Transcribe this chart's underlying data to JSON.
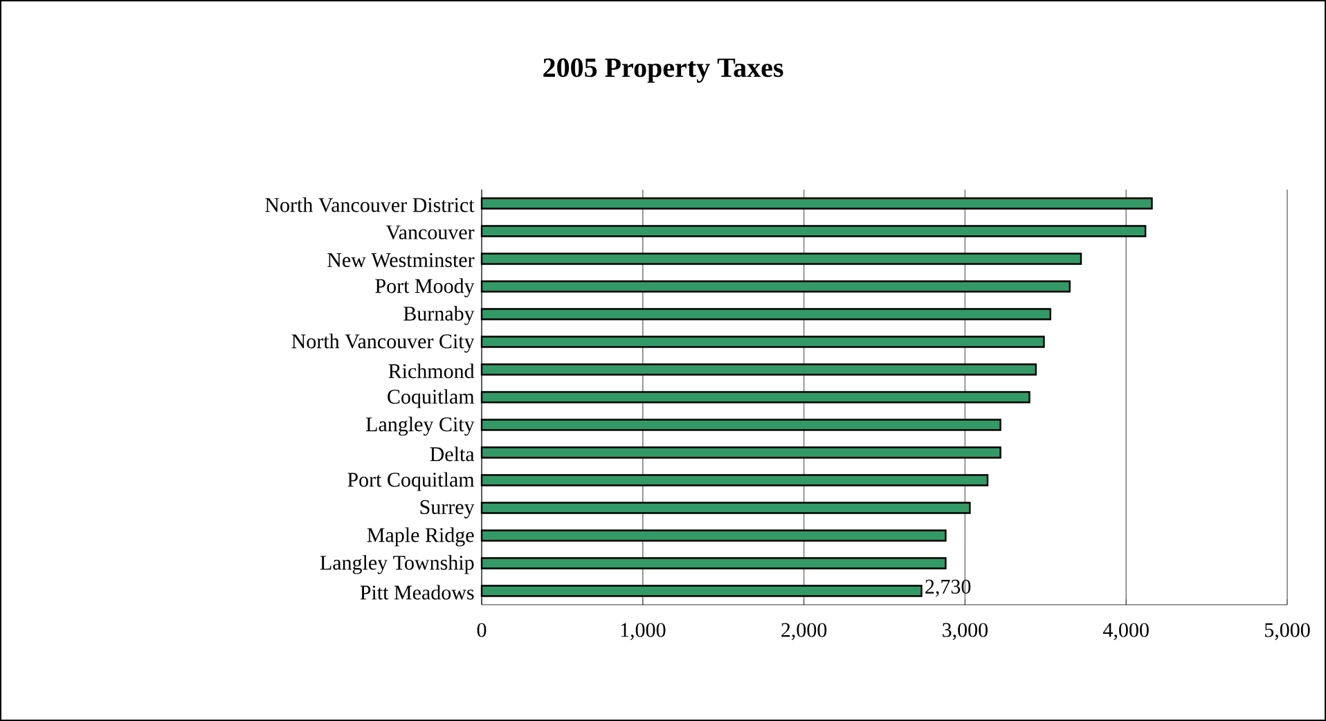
{
  "chart_data": {
    "type": "bar",
    "orientation": "horizontal",
    "title": "2005 Property Taxes",
    "categories": [
      "North Vancouver District",
      "Vancouver",
      "New Westminster",
      "Port Moody",
      "Burnaby",
      "North Vancouver City",
      "Richmond",
      "Coquitlam",
      "Langley City",
      "Delta",
      "Port Coquitlam",
      "Surrey",
      "Maple Ridge",
      "Langley Township",
      "Pitt Meadows"
    ],
    "values": [
      4160,
      4120,
      3720,
      3650,
      3530,
      3490,
      3440,
      3400,
      3220,
      3220,
      3140,
      3030,
      2880,
      2880,
      2730
    ],
    "value_labels": [
      null,
      null,
      null,
      null,
      null,
      null,
      null,
      null,
      null,
      null,
      null,
      null,
      null,
      null,
      "2,730"
    ],
    "color": "#339966",
    "xlim": [
      0,
      5000
    ],
    "xticks": [
      0,
      {
        "value": 1000,
        "label": "1,000"
      },
      {
        "value": 2000,
        "label": "2,000"
      },
      {
        "value": 3000,
        "label": "3,000"
      },
      {
        "value": 4000,
        "label": "4,000"
      },
      {
        "value": 5000,
        "label": "5,000"
      }
    ],
    "grid": "x"
  }
}
